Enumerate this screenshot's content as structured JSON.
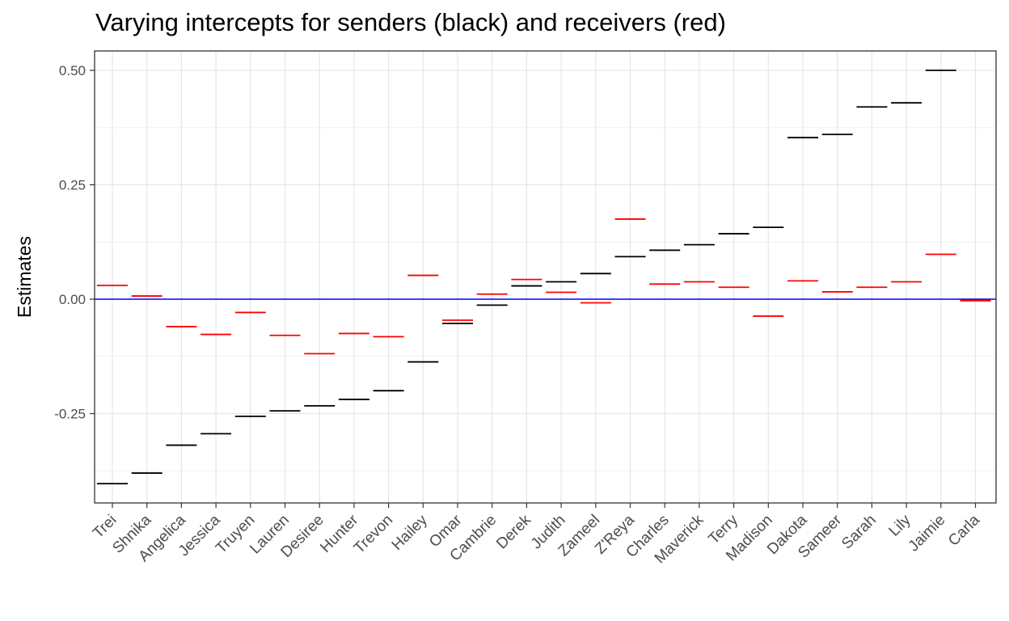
{
  "chart_data": {
    "type": "scatter",
    "title": "Varying intercepts for senders (black) and receivers (red)",
    "xlabel": "",
    "ylabel": "Estimates",
    "ylim": [
      -0.45,
      0.5
    ],
    "yticks": [
      -0.25,
      0.0,
      0.25,
      0.5
    ],
    "ytick_labels": [
      "-0.25",
      "0.00",
      "0.25",
      "0.50"
    ],
    "grid": true,
    "reference_line": {
      "y": 0.0,
      "color": "#0000ff"
    },
    "categories": [
      "Trei",
      "Shnika",
      "Angelica",
      "Jessica",
      "Truyen",
      "Lauren",
      "Desiree",
      "Hunter",
      "Trevon",
      "Hailey",
      "Omar",
      "Cambrie",
      "Derek",
      "Judith",
      "Zameel",
      "Z'Reya",
      "Charles",
      "Maverick",
      "Terry",
      "Madison",
      "Dakota",
      "Sameer",
      "Sarah",
      "Lily",
      "Jaimie",
      "Carla"
    ],
    "series": [
      {
        "color": "#000000",
        "values": [
          -0.403,
          -0.38,
          -0.319,
          -0.294,
          -0.256,
          -0.244,
          -0.233,
          -0.219,
          -0.2,
          -0.137,
          -0.053,
          -0.013,
          0.029,
          0.038,
          0.056,
          0.093,
          0.107,
          0.119,
          0.143,
          0.157,
          0.353,
          0.36,
          0.42,
          0.429,
          0.5,
          -0.003
        ]
      },
      {
        "color": "#ff0000",
        "values": [
          0.03,
          0.007,
          -0.06,
          -0.077,
          -0.029,
          -0.079,
          -0.119,
          -0.075,
          -0.082,
          0.052,
          -0.046,
          0.011,
          0.043,
          0.015,
          -0.008,
          0.175,
          0.033,
          0.038,
          0.026,
          -0.037,
          0.04,
          0.016,
          0.026,
          0.038,
          0.098,
          -0.003
        ]
      }
    ]
  }
}
